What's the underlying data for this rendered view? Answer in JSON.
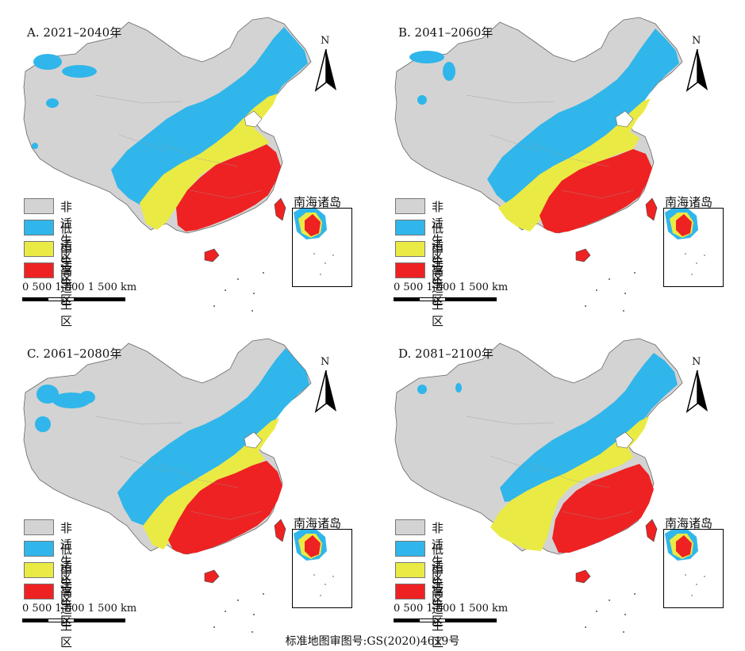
{
  "panels": [
    {
      "id": "A",
      "title": "A. 2021–2040年",
      "variant": 0
    },
    {
      "id": "B",
      "title": "B. 2041–2060年",
      "variant": 1
    },
    {
      "id": "C",
      "title": "C. 2061–2080年",
      "variant": 2
    },
    {
      "id": "D",
      "title": "D. 2081–2100年",
      "variant": 3
    }
  ],
  "legend": [
    {
      "label": "非适生区",
      "color": "#d3d3d3"
    },
    {
      "label": "低适生区",
      "color": "#30b6ea"
    },
    {
      "label": "中适生区",
      "color": "#eaea44"
    },
    {
      "label": "高适生区",
      "color": "#ee2222"
    }
  ],
  "north_label": "N",
  "scale_text": "0    500 1 000 1 500 km",
  "inset_title": "南海诸岛",
  "footer": "标准地图审图号:GS(2020)4619号"
}
